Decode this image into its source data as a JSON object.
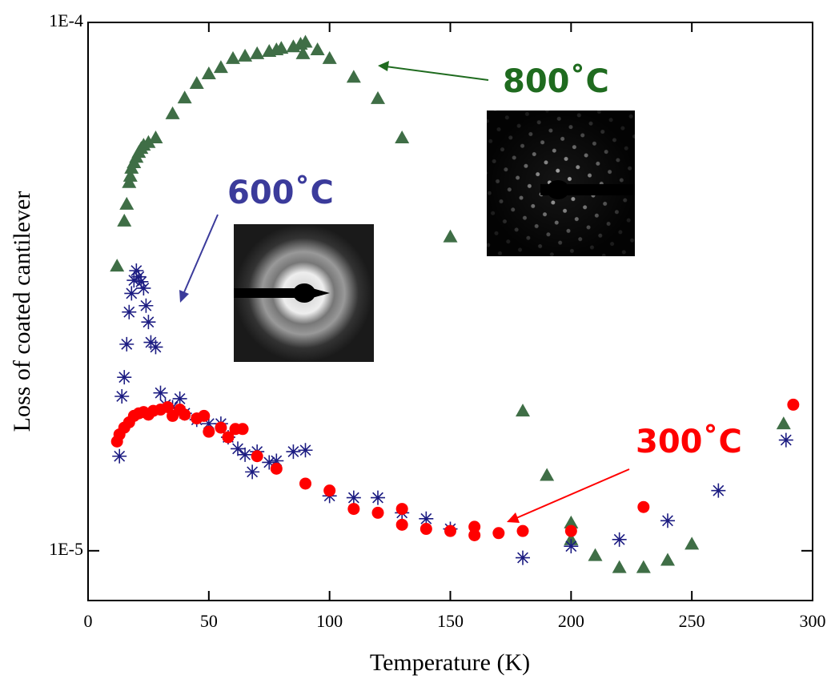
{
  "chart_data": {
    "type": "scatter",
    "x_label": "Temperature (K)",
    "y_label": "Loss of coated cantilever",
    "xlim": [
      0,
      300
    ],
    "xticks": [
      0,
      50,
      100,
      150,
      200,
      250,
      300
    ],
    "ylim": [
      8.05e-06,
      0.0001
    ],
    "yscale": "log",
    "yticks": [
      {
        "value": 1e-05,
        "label": "1E-5"
      },
      {
        "value": 0.0001,
        "label": "1E-4"
      }
    ],
    "series": [
      {
        "name": "800˚C",
        "color": "#3f6e46",
        "marker": "triangle",
        "x": [
          12,
          15,
          16,
          17,
          17.5,
          18,
          19,
          20,
          21,
          22,
          23,
          25,
          28,
          35,
          40,
          45,
          50,
          55,
          60,
          65,
          70,
          75,
          78,
          80,
          85,
          88,
          90,
          89,
          95,
          100,
          110,
          120,
          130,
          150,
          180,
          190,
          200,
          200,
          210,
          220,
          230,
          240,
          250,
          288
        ],
        "values": [
          3.46e-05,
          4.21e-05,
          4.53e-05,
          4.98e-05,
          5.12e-05,
          5.3e-05,
          5.43e-05,
          5.56e-05,
          5.68e-05,
          5.78e-05,
          5.86e-05,
          5.93e-05,
          6.05e-05,
          6.72e-05,
          7.2e-05,
          7.67e-05,
          8e-05,
          8.22e-05,
          8.55e-05,
          8.64e-05,
          8.73e-05,
          8.82e-05,
          8.88e-05,
          8.94e-05,
          9e-05,
          9.1e-05,
          9.18e-05,
          8.73e-05,
          8.88e-05,
          8.55e-05,
          7.88e-05,
          7.18e-05,
          6.05e-05,
          3.93e-05,
          1.84e-05,
          1.39e-05,
          1.13e-05,
          1.05e-05,
          9.8e-06,
          9.3e-06,
          9.3e-06,
          9.6e-06,
          1.03e-05,
          1.74e-05
        ]
      },
      {
        "name": "600˚C",
        "color": "#1c1c82",
        "marker": "star",
        "x": [
          13,
          14,
          15,
          16,
          17,
          18,
          19,
          20,
          21,
          22,
          23,
          24,
          25,
          26,
          28,
          30,
          32,
          35,
          38,
          40,
          45,
          50,
          55,
          58,
          62,
          65,
          68,
          70,
          75,
          78,
          85,
          90,
          100,
          110,
          120,
          130,
          140,
          150,
          180,
          200,
          220,
          240,
          261,
          289
        ],
        "values": [
          1.51e-05,
          1.96e-05,
          2.13e-05,
          2.46e-05,
          2.83e-05,
          3.07e-05,
          3.25e-05,
          3.39e-05,
          3.3e-05,
          3.23e-05,
          3.14e-05,
          2.91e-05,
          2.71e-05,
          2.48e-05,
          2.43e-05,
          1.99e-05,
          1.89e-05,
          1.87e-05,
          1.94e-05,
          1.82e-05,
          1.77e-05,
          1.74e-05,
          1.74e-05,
          1.64e-05,
          1.56e-05,
          1.52e-05,
          1.41e-05,
          1.54e-05,
          1.47e-05,
          1.48e-05,
          1.54e-05,
          1.55e-05,
          1.27e-05,
          1.26e-05,
          1.26e-05,
          1.18e-05,
          1.15e-05,
          1.1e-05,
          9.7e-06,
          1.02e-05,
          1.05e-05,
          1.14e-05,
          1.3e-05,
          1.62e-05
        ]
      },
      {
        "name": "300˚C",
        "color": "#ff0000",
        "marker": "circle",
        "x": [
          12,
          13,
          15,
          17,
          19,
          21,
          23,
          25,
          27,
          30,
          33,
          35,
          38,
          40,
          45,
          48,
          50,
          55,
          58,
          61,
          64,
          70,
          78,
          90,
          100,
          110,
          120,
          130,
          130,
          140,
          150,
          160,
          160,
          170,
          180,
          200,
          230,
          292
        ],
        "values": [
          1.61e-05,
          1.66e-05,
          1.71e-05,
          1.75e-05,
          1.8e-05,
          1.82e-05,
          1.83e-05,
          1.81e-05,
          1.84e-05,
          1.85e-05,
          1.87e-05,
          1.8e-05,
          1.85e-05,
          1.81e-05,
          1.78e-05,
          1.8e-05,
          1.68e-05,
          1.71e-05,
          1.64e-05,
          1.7e-05,
          1.7e-05,
          1.51e-05,
          1.43e-05,
          1.34e-05,
          1.3e-05,
          1.2e-05,
          1.18e-05,
          1.2e-05,
          1.12e-05,
          1.1e-05,
          1.09e-05,
          1.11e-05,
          1.07e-05,
          1.08e-05,
          1.09e-05,
          1.09e-05,
          1.21e-05,
          1.89e-05
        ]
      }
    ]
  }
}
